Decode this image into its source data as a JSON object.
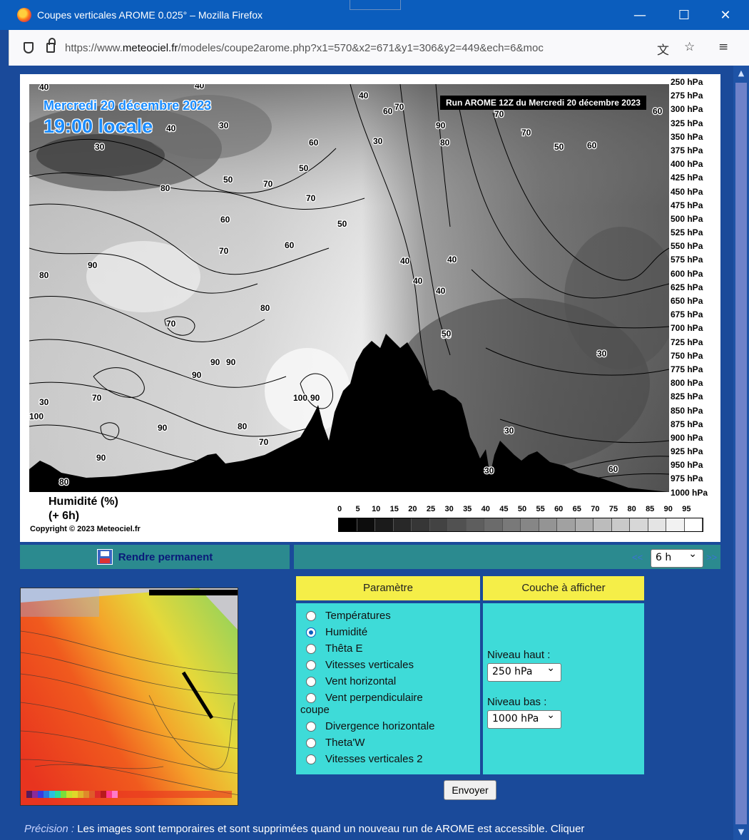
{
  "window": {
    "title": "Coupes verticales AROME 0.025° – Mozilla Firefox",
    "minimize": "—",
    "maximize": "☐",
    "close": "✕"
  },
  "urlbar": {
    "url_prefix": "https://www.",
    "url_domain": "meteociel.fr",
    "url_rest": "/modeles/coupe2arome.php?x1=570&x2=671&y1=306&y2=449&ech=6&moc",
    "translate_icon": "translate-icon",
    "star_icon": "star-icon",
    "menu_icon": "menu-icon"
  },
  "chart": {
    "date_line": "Mercredi 20 décembre 2023",
    "time_line": "19:00 locale",
    "run_label": "Run AROME 12Z du Mercredi 20 décembre 2023",
    "param_line1": "Humidité (%)",
    "param_line2": "(+ 6h)",
    "copyright": "Copyright © 2023 Meteociel.fr",
    "pressure_levels": [
      "250 hPa",
      "275 hPa",
      "300 hPa",
      "325 hPa",
      "350 hPa",
      "375 hPa",
      "400 hPa",
      "425 hPa",
      "450 hPa",
      "475 hPa",
      "500 hPa",
      "525 hPa",
      "550 hPa",
      "575 hPa",
      "600 hPa",
      "625 hPa",
      "650 hPa",
      "675 hPa",
      "700 hPa",
      "725 hPa",
      "750 hPa",
      "775 hPa",
      "800 hPa",
      "825 hPa",
      "850 hPa",
      "875 hPa",
      "900 hPa",
      "925 hPa",
      "950 hPa",
      "975 hPa",
      "1000 hPa"
    ],
    "legend_ticks": [
      "0",
      "5",
      "10",
      "15",
      "20",
      "25",
      "30",
      "35",
      "40",
      "45",
      "50",
      "55",
      "60",
      "65",
      "70",
      "75",
      "80",
      "85",
      "90",
      "95"
    ],
    "contour_labels": [
      {
        "text": "40"
      },
      {
        "text": "40"
      },
      {
        "text": "40"
      },
      {
        "text": "60"
      },
      {
        "text": "70"
      },
      {
        "text": "70"
      },
      {
        "text": "60"
      },
      {
        "text": "30"
      },
      {
        "text": "40"
      },
      {
        "text": "30"
      },
      {
        "text": "60"
      },
      {
        "text": "90"
      },
      {
        "text": "80"
      },
      {
        "text": "70"
      },
      {
        "text": "30"
      },
      {
        "text": "50"
      },
      {
        "text": "50"
      },
      {
        "text": "60"
      },
      {
        "text": "50"
      },
      {
        "text": "80"
      },
      {
        "text": "70"
      },
      {
        "text": "70"
      },
      {
        "text": "60"
      },
      {
        "text": "50"
      },
      {
        "text": "60"
      },
      {
        "text": "70"
      },
      {
        "text": "90"
      },
      {
        "text": "40"
      },
      {
        "text": "40"
      },
      {
        "text": "40"
      },
      {
        "text": "40"
      },
      {
        "text": "80"
      },
      {
        "text": "80"
      },
      {
        "text": "70"
      },
      {
        "text": "50"
      },
      {
        "text": "30"
      },
      {
        "text": "90"
      },
      {
        "text": "90"
      },
      {
        "text": "90"
      },
      {
        "text": "70"
      },
      {
        "text": "100"
      },
      {
        "text": "90"
      },
      {
        "text": "100"
      },
      {
        "text": "90"
      },
      {
        "text": "80"
      },
      {
        "text": "70"
      },
      {
        "text": "30"
      },
      {
        "text": "90"
      },
      {
        "text": "80"
      },
      {
        "text": "30"
      },
      {
        "text": "60"
      },
      {
        "text": "30"
      },
      {
        "text": "50"
      }
    ]
  },
  "toolbar": {
    "permanent_label": "Rendre permanent",
    "prev": "<<",
    "next": ">>",
    "step_value": "6 h"
  },
  "params": {
    "header_param": "Paramètre",
    "header_layer": "Couche à afficher",
    "options": [
      {
        "label": "Températures",
        "selected": false
      },
      {
        "label": "Humidité",
        "selected": true
      },
      {
        "label": "Thêta E",
        "selected": false
      },
      {
        "label": "Vitesses verticales",
        "selected": false
      },
      {
        "label": "Vent horizontal",
        "selected": false
      },
      {
        "label": "Vent perpendiculaire",
        "selected": false
      },
      {
        "label": "Divergence horizontale",
        "selected": false
      },
      {
        "label": "Theta'W",
        "selected": false
      },
      {
        "label": "Vitesses verticales 2",
        "selected": false
      }
    ],
    "wrap_text": "coupe",
    "top_level_label": "Niveau haut :",
    "top_level_value": "250 hPa",
    "bottom_level_label": "Niveau bas :",
    "bottom_level_value": "1000 hPa",
    "submit_label": "Envoyer"
  },
  "note": {
    "prefix": "Précision :",
    "text": " Les images sont temporaires et sont supprimées quand un nouveau run de AROME est accessible. Cliquer"
  }
}
